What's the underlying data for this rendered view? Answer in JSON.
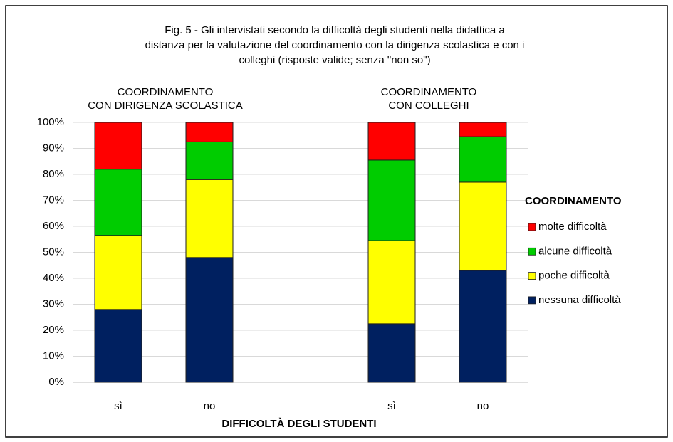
{
  "chart_data": {
    "type": "stacked_bar",
    "title": [
      "Fig. 5 - Gli intervistati secondo la difficoltà degli studenti nella didattica a",
      "distanza per la valutazione del coordinamento con la dirigenza scolastica e con i",
      "colleghi (risposte valide; senza \"non so\")"
    ],
    "annotations": [
      [
        "COORDINAMENTO",
        "CON DIRIGENZA SCOLASTICA"
      ],
      [
        "COORDINAMENTO",
        "CON COLLEGHI"
      ]
    ],
    "x_label": "DIFFICOLTÀ DEGLI STUDENTI",
    "legend_title": "COORDINAMENTO",
    "legend": "right",
    "categories": [
      "sì",
      "no",
      null,
      "sì",
      "no"
    ],
    "series": [
      {
        "name": "nessuna difficoltà",
        "color": "#002060",
        "values": [
          28,
          48,
          null,
          22.5,
          43
        ]
      },
      {
        "name": "poche difficoltà",
        "color": "#ffff00",
        "values": [
          28.5,
          30,
          null,
          32,
          34
        ]
      },
      {
        "name": "alcune difficoltà",
        "color": "#00cc00",
        "values": [
          25.5,
          14.5,
          null,
          31,
          17.5
        ]
      },
      {
        "name": "molte difficoltà",
        "color": "#ff0000",
        "values": [
          18,
          7.5,
          null,
          14.5,
          5.5
        ]
      }
    ],
    "ylim": [
      0,
      100
    ],
    "yticks": [
      {
        "value": 0,
        "label": "0%"
      },
      {
        "value": 10,
        "label": "10%"
      },
      {
        "value": 20,
        "label": "20%"
      },
      {
        "value": 30,
        "label": "30%"
      },
      {
        "value": 40,
        "label": "40%"
      },
      {
        "value": 50,
        "label": "50%"
      },
      {
        "value": 60,
        "label": "60%"
      },
      {
        "value": 70,
        "label": "70%"
      },
      {
        "value": 80,
        "label": "80%"
      },
      {
        "value": 90,
        "label": "90%"
      },
      {
        "value": 100,
        "label": "100%"
      }
    ],
    "grid": true
  }
}
